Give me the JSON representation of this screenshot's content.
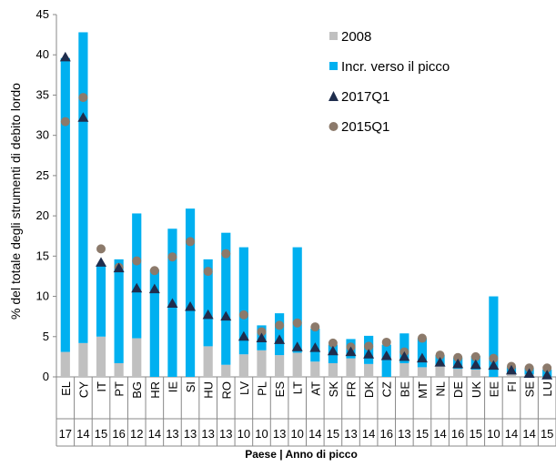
{
  "chart_data": {
    "type": "bar",
    "xlabel": "Paese | Anno di picco",
    "ylabel": "% del totale degli strumenti di debito lordo",
    "ylim": [
      0,
      45
    ],
    "yticks": [
      0,
      5,
      10,
      15,
      20,
      25,
      30,
      35,
      40,
      45
    ],
    "grid": false,
    "legend_position": "top-right",
    "categories": [
      "EL",
      "CY",
      "IT",
      "PT",
      "BG",
      "HR",
      "IE",
      "SI",
      "HU",
      "RO",
      "LV",
      "PL",
      "ES",
      "LT",
      "AT",
      "SK",
      "FR",
      "DK",
      "CZ",
      "BE",
      "MT",
      "NL",
      "DE",
      "UK",
      "EE",
      "FI",
      "SE",
      "LU"
    ],
    "peak_years": [
      "17",
      "14",
      "15",
      "16",
      "12",
      "14",
      "13",
      "13",
      "13",
      "13",
      "10",
      "10",
      "13",
      "10",
      "14",
      "15",
      "13",
      "14",
      "16",
      "13",
      "15",
      "14",
      "16",
      "15",
      "10",
      "14",
      "14",
      "15"
    ],
    "series": [
      {
        "name": "2008",
        "kind": "bar",
        "color": "#c0c0c0",
        "values": [
          3.1,
          4.2,
          5.0,
          1.7,
          4.8,
          0,
          0,
          0,
          3.8,
          1.5,
          2.8,
          3.3,
          2.7,
          3.0,
          1.9,
          1.7,
          2.3,
          1.6,
          0,
          1.7,
          1.2,
          1.3,
          1.0,
          0.9,
          0,
          0.5,
          0.3,
          0
        ]
      },
      {
        "name": "Incr. verso il picco",
        "kind": "bar",
        "color": "#00b0f0",
        "values": [
          36.5,
          38.6,
          8.9,
          12.9,
          15.5,
          13.3,
          18.4,
          20.9,
          10.8,
          16.4,
          13.3,
          3.1,
          5.2,
          13.1,
          4.1,
          2.3,
          2.4,
          3.5,
          4.0,
          3.7,
          3.6,
          1.4,
          1.4,
          1.7,
          10.0,
          0.7,
          0.8,
          0.9
        ]
      },
      {
        "name": "2017Q1",
        "kind": "marker",
        "shape": "triangle",
        "color": "#1f2d4d",
        "values": [
          39.7,
          32.2,
          14.2,
          13.5,
          11.0,
          10.9,
          9.1,
          8.7,
          7.7,
          7.5,
          5.0,
          4.8,
          4.6,
          3.7,
          3.6,
          3.2,
          3.1,
          2.8,
          2.6,
          2.5,
          2.3,
          1.8,
          1.6,
          1.5,
          1.4,
          0.8,
          0.4,
          0.2
        ]
      },
      {
        "name": "2015Q1",
        "kind": "marker",
        "shape": "circle",
        "color": "#8c7a6b",
        "values": [
          31.7,
          34.7,
          15.9,
          13.6,
          14.4,
          13.2,
          14.9,
          16.8,
          13.1,
          15.3,
          7.7,
          5.6,
          6.4,
          6.7,
          6.2,
          4.2,
          3.7,
          3.8,
          4.3,
          3.1,
          4.8,
          2.7,
          2.4,
          2.5,
          2.3,
          1.3,
          1.1,
          1.1
        ]
      }
    ]
  }
}
